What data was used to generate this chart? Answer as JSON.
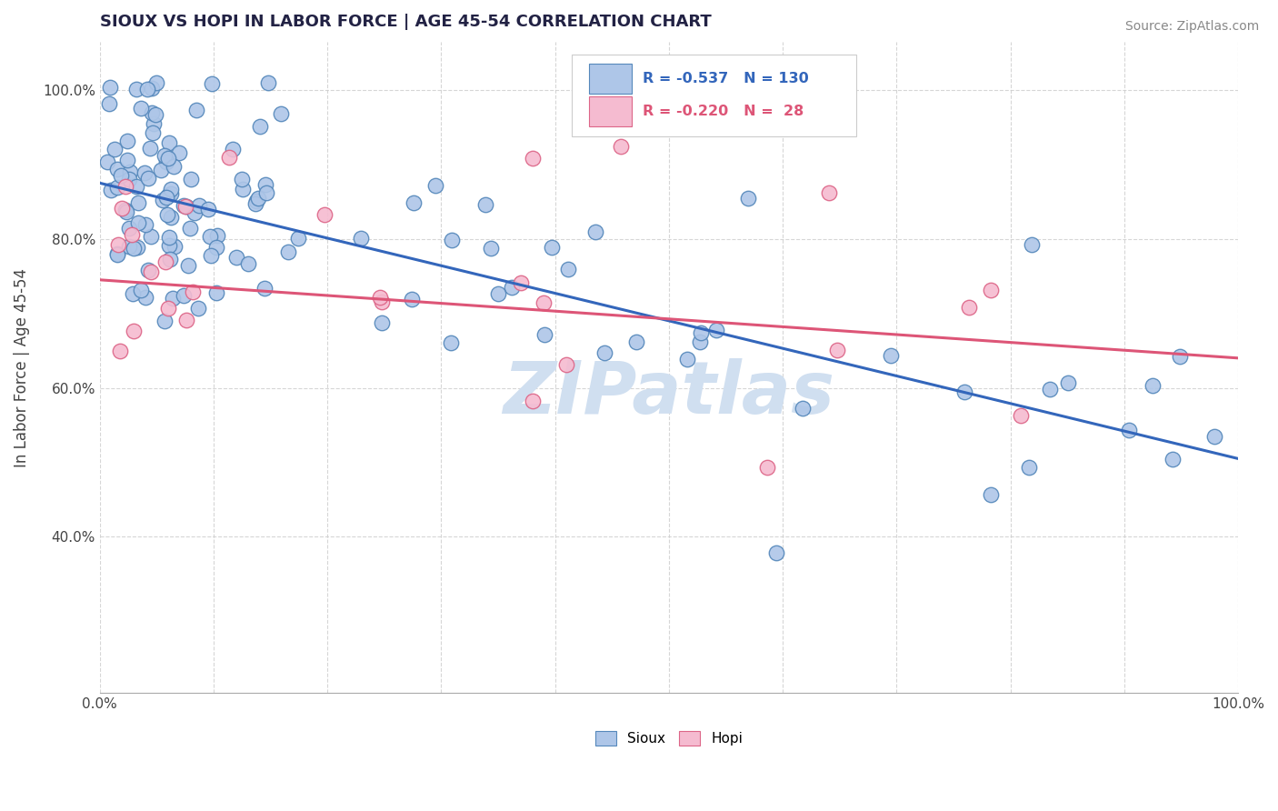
{
  "title": "SIOUX VS HOPI IN LABOR FORCE | AGE 45-54 CORRELATION CHART",
  "source_text": "Source: ZipAtlas.com",
  "ylabel": "In Labor Force | Age 45-54",
  "legend_r_sioux": "-0.537",
  "legend_n_sioux": "130",
  "legend_r_hopi": "-0.220",
  "legend_n_hopi": "28",
  "sioux_color": "#aec6e8",
  "sioux_edge_color": "#5588bb",
  "hopi_color": "#f5bbd0",
  "hopi_edge_color": "#dd6688",
  "sioux_line_color": "#3366bb",
  "hopi_line_color": "#dd5577",
  "sioux_legend_color": "#aec6e8",
  "hopi_legend_color": "#f5bbd0",
  "watermark_color": "#d0dff0",
  "background_color": "#ffffff",
  "grid_color": "#cccccc",
  "sioux_intercept": 0.875,
  "sioux_slope": -0.37,
  "hopi_intercept": 0.745,
  "hopi_slope": -0.105,
  "ylim": [
    0.19,
    1.065
  ],
  "xlim": [
    0.0,
    1.0
  ]
}
